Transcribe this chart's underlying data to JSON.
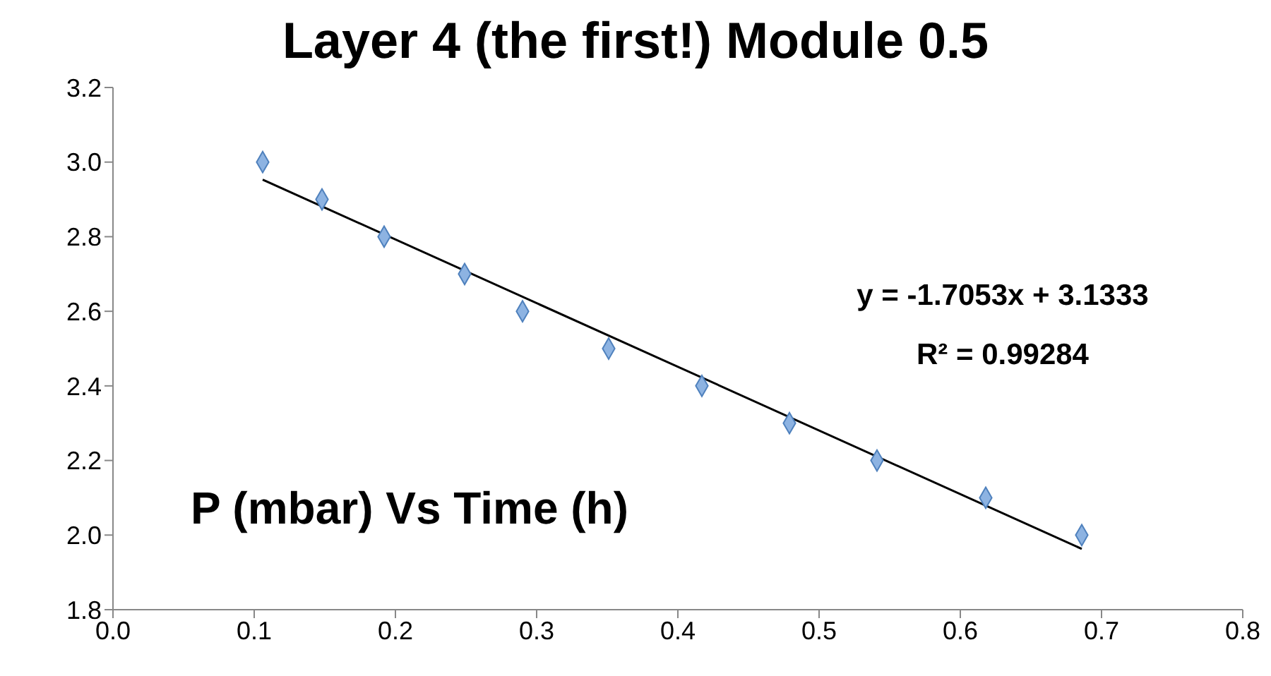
{
  "chart_data": {
    "type": "scatter",
    "title": "Layer 4 (the first!) Module 0.5",
    "series": [
      {
        "color": "#8db3e2",
        "marker": "diamond",
        "x": [
          0.106,
          0.148,
          0.192,
          0.249,
          0.29,
          0.351,
          0.417,
          0.479,
          0.541,
          0.618,
          0.686
        ],
        "values": [
          3.0,
          2.9,
          2.8,
          2.7,
          2.6,
          2.5,
          2.4,
          2.3,
          2.2,
          2.1,
          2.0
        ]
      },
      {
        "type": "line",
        "color": "#000000",
        "marker": "none",
        "x": [
          0.106,
          0.686
        ],
        "values": [
          2.953,
          1.963
        ]
      }
    ],
    "xlim": [
      0,
      0.8
    ],
    "xticks": [
      {
        "value": 0,
        "label": "0.0"
      },
      0.1,
      0.2,
      0.3,
      0.4,
      0.5,
      0.6,
      0.7,
      0.8
    ],
    "ylim": [
      1.8,
      3.2
    ],
    "yticks": [
      1.8,
      {
        "value": 2,
        "label": "2.0"
      },
      2.2,
      2.4,
      2.6,
      2.8,
      {
        "value": 3,
        "label": "3.0"
      },
      3.2
    ],
    "annotations": [
      "y = -1.7053x + 3.1333",
      "R² = 0.99284",
      "P (mbar) Vs Time (h)"
    ]
  }
}
